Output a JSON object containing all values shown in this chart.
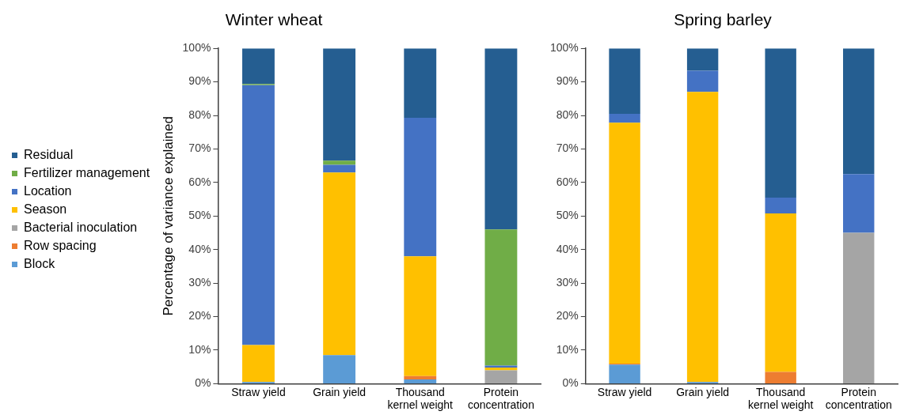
{
  "chart_data": [
    {
      "type": "bar",
      "title": "Winter wheat",
      "ylabel": "Percentage of variance explained",
      "stacked": true,
      "legend": "left",
      "grid": false,
      "categories": [
        "Straw yield",
        "Grain yield",
        "Thousand kernel weight",
        "Protein concentration"
      ],
      "ylim": [
        0,
        100
      ],
      "yticks": [
        {
          "value": 0,
          "label": "0%"
        },
        {
          "value": 10,
          "label": "10%"
        },
        {
          "value": 20,
          "label": "20%"
        },
        {
          "value": 30,
          "label": "30%"
        },
        {
          "value": 40,
          "label": "40%"
        },
        {
          "value": 50,
          "label": "50%"
        },
        {
          "value": 60,
          "label": "60%"
        },
        {
          "value": 70,
          "label": "70%"
        },
        {
          "value": 80,
          "label": "80%"
        },
        {
          "value": 90,
          "label": "90%"
        },
        {
          "value": 100,
          "label": "100%"
        }
      ],
      "series": [
        {
          "name": "Block",
          "color": "#5b9bd5",
          "values": [
            0.5,
            8.5,
            1.3,
            0
          ]
        },
        {
          "name": "Row spacing",
          "color": "#ed7d31",
          "values": [
            0,
            0,
            1,
            0
          ]
        },
        {
          "name": "Bacterial inoculation",
          "color": "#a5a5a5",
          "values": [
            0,
            0,
            0,
            4
          ]
        },
        {
          "name": "Season",
          "color": "#ffc000",
          "values": [
            11,
            54.5,
            35.7,
            0.8
          ]
        },
        {
          "name": "Location",
          "color": "#4472c4",
          "values": [
            77.5,
            2.3,
            41.3,
            0.6
          ]
        },
        {
          "name": "Fertilizer management",
          "color": "#70ad47",
          "values": [
            0.4,
            1.2,
            0,
            40.6
          ]
        },
        {
          "name": "Residual",
          "color": "#255e91",
          "values": [
            10.6,
            33.5,
            20.7,
            54
          ]
        }
      ]
    },
    {
      "type": "bar",
      "title": "Spring barley",
      "stacked": true,
      "grid": false,
      "categories": [
        "Straw yield",
        "Grain yield",
        "Thousand kernel weight",
        "Protein concentration"
      ],
      "ylim": [
        0,
        100
      ],
      "yticks": [
        {
          "value": 0,
          "label": "0%"
        },
        {
          "value": 10,
          "label": "10%"
        },
        {
          "value": 20,
          "label": "20%"
        },
        {
          "value": 30,
          "label": "30%"
        },
        {
          "value": 40,
          "label": "40%"
        },
        {
          "value": 50,
          "label": "50%"
        },
        {
          "value": 60,
          "label": "60%"
        },
        {
          "value": 70,
          "label": "70%"
        },
        {
          "value": 80,
          "label": "80%"
        },
        {
          "value": 90,
          "label": "90%"
        },
        {
          "value": 100,
          "label": "100%"
        }
      ],
      "series": [
        {
          "color": "#5b9bd5",
          "values": [
            5.7,
            0.5,
            0,
            0
          ]
        },
        {
          "color": "#ed7d31",
          "values": [
            0.3,
            0,
            3.5,
            0
          ]
        },
        {
          "color": "#a5a5a5",
          "values": [
            0,
            0,
            0,
            45
          ]
        },
        {
          "color": "#ffc000",
          "values": [
            71.8,
            86.5,
            47.3,
            0
          ]
        },
        {
          "color": "#4472c4",
          "values": [
            2.7,
            6.3,
            4.7,
            17.5
          ]
        },
        {
          "color": "#70ad47",
          "values": [
            0,
            0,
            0,
            0
          ]
        },
        {
          "color": "#255e91",
          "values": [
            19.5,
            6.7,
            44.5,
            37.5
          ]
        }
      ]
    }
  ]
}
